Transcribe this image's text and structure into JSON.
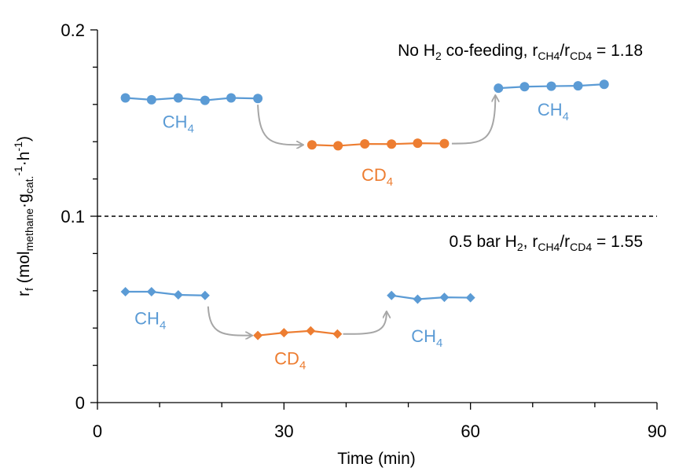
{
  "chart_data": {
    "type": "line",
    "xlabel": "Time (min)",
    "ylabel": {
      "main": "r",
      "sub_f": "f",
      "open": " (mol",
      "sub_methane": "methane",
      "dot1": "·g",
      "sub_cat": "cat.",
      "sup_m1a": "-1",
      "dot2": "·h",
      "sup_m1b": "-1",
      "close": ")"
    },
    "xlim": [
      0,
      90
    ],
    "ylim": [
      0,
      0.2
    ],
    "x_ticks": [
      0,
      30,
      60,
      90
    ],
    "x_tick_labels": [
      "0",
      "30",
      "60",
      "90"
    ],
    "y_ticks": [
      0,
      0.1,
      0.2
    ],
    "y_tick_labels": [
      "0",
      "0.1",
      "0.2"
    ],
    "x_minor_step": 10,
    "y_minor_step": 0.02,
    "divider_y": 0.1,
    "colors": {
      "CH4": "#5b9bd5",
      "CD4": "#ed7d31",
      "arrow": "#a6a6a6",
      "axis": "#000000"
    },
    "annotations": {
      "top": {
        "p1": "No H",
        "p1sub": "2",
        "p2": " co-feeding, r",
        "p2sub": "CH4",
        "p3": "/r",
        "p3sub": "CD4",
        "p4": " = 1.18"
      },
      "bottom": {
        "p1": "0.5 bar H",
        "p1sub": "2",
        "p2": ", r",
        "p2sub": "CH4",
        "p3": "/r",
        "p3sub": "CD4",
        "p4": " = 1.55"
      }
    },
    "series": [
      {
        "group": "top",
        "species": "CH4",
        "marker": "circle",
        "x": [
          4.5,
          8.7,
          13.0,
          17.3,
          21.5,
          25.8
        ],
        "y": [
          0.1635,
          0.1625,
          0.1635,
          0.1622,
          0.1635,
          0.1632
        ]
      },
      {
        "group": "top",
        "species": "CD4",
        "marker": "circle",
        "x": [
          34.5,
          38.7,
          43.0,
          47.3,
          51.5,
          55.8
        ],
        "y": [
          0.1383,
          0.1378,
          0.1388,
          0.1387,
          0.1392,
          0.139
        ]
      },
      {
        "group": "top",
        "species": "CH4",
        "marker": "circle",
        "x": [
          64.5,
          68.7,
          73.0,
          77.3,
          81.5
        ],
        "y": [
          0.1687,
          0.1695,
          0.1698,
          0.17,
          0.1708
        ]
      },
      {
        "group": "bottom",
        "species": "CH4",
        "marker": "diamond",
        "x": [
          4.5,
          8.7,
          13.0,
          17.3
        ],
        "y": [
          0.0595,
          0.0595,
          0.0578,
          0.0575
        ]
      },
      {
        "group": "bottom",
        "species": "CD4",
        "marker": "diamond",
        "x": [
          25.8,
          30.0,
          34.3,
          38.6
        ],
        "y": [
          0.036,
          0.0375,
          0.0385,
          0.0368
        ]
      },
      {
        "group": "bottom",
        "species": "CH4",
        "marker": "diamond",
        "x": [
          47.3,
          51.5,
          55.8,
          60.0
        ],
        "y": [
          0.0575,
          0.0555,
          0.0565,
          0.0563
        ]
      }
    ],
    "segment_labels": [
      {
        "main": "CH",
        "sub": "4",
        "species": "CH4",
        "x": 13.0,
        "y": 0.1475
      },
      {
        "main": "CD",
        "sub": "4",
        "species": "CD4",
        "x": 45.0,
        "y": 0.119
      },
      {
        "main": "CH",
        "sub": "4",
        "species": "CH4",
        "x": 73.3,
        "y": 0.154
      },
      {
        "main": "CH",
        "sub": "4",
        "species": "CH4",
        "x": 8.5,
        "y": 0.042
      },
      {
        "main": "CD",
        "sub": "4",
        "species": "CD4",
        "x": 31.0,
        "y": 0.0205
      },
      {
        "main": "CH",
        "sub": "4",
        "species": "CH4",
        "x": 53.0,
        "y": 0.0325
      }
    ],
    "arrows": [
      {
        "from": [
          25.8,
          0.1632
        ],
        "to": [
          33.0,
          0.1383
        ],
        "bend": "down"
      },
      {
        "from": [
          57.0,
          0.139
        ],
        "to": [
          64.0,
          0.168
        ],
        "bend": "up"
      },
      {
        "from": [
          17.8,
          0.055
        ],
        "to": [
          24.8,
          0.036
        ],
        "bend": "down"
      },
      {
        "from": [
          39.5,
          0.0368
        ],
        "to": [
          46.5,
          0.052
        ],
        "bend": "up"
      }
    ]
  }
}
